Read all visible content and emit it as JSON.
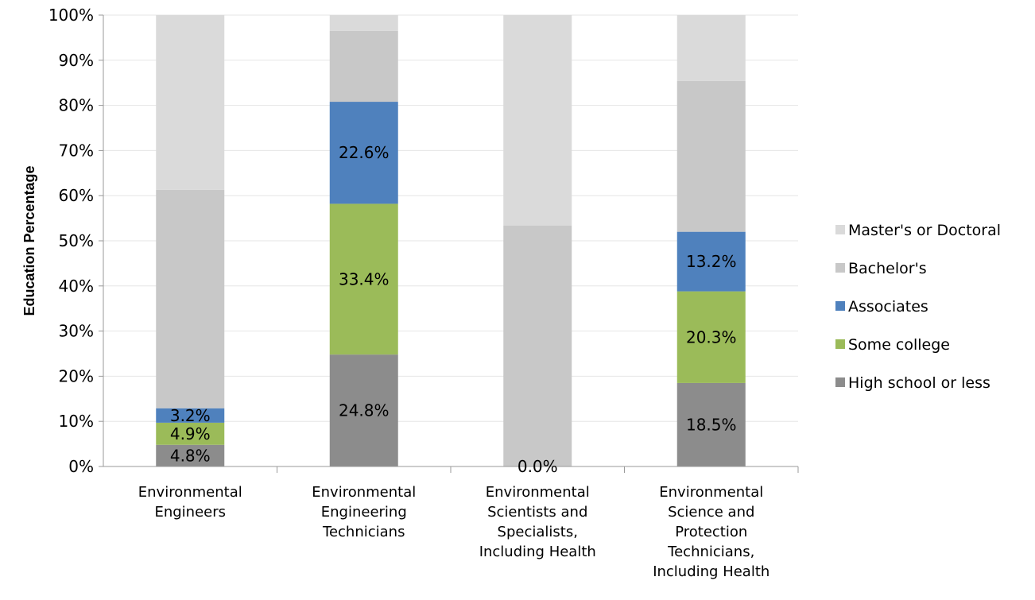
{
  "chart_data": {
    "type": "bar",
    "stacked": true,
    "ylabel": "Education Percentage",
    "ylim": [
      0,
      100
    ],
    "yticks": [
      "0%",
      "10%",
      "20%",
      "30%",
      "40%",
      "50%",
      "60%",
      "70%",
      "80%",
      "90%",
      "100%"
    ],
    "grid": true,
    "legend_position": "right",
    "categories": [
      [
        "Environmental",
        "Engineers"
      ],
      [
        "Environmental",
        "Engineering",
        "Technicians"
      ],
      [
        "Environmental",
        "Scientists and",
        "Specialists,",
        "Including Health"
      ],
      [
        "Environmental",
        "Science and",
        "Protection",
        "Technicians,",
        "Including Health"
      ]
    ],
    "series": [
      {
        "name": "High school or less",
        "color": "#8c8c8c",
        "values": [
          4.8,
          24.8,
          0.0,
          18.5
        ],
        "labels": [
          "4.8%",
          "24.8%",
          "0.0%",
          "18.5%"
        ]
      },
      {
        "name": "Some college",
        "color": "#9bbb59",
        "values": [
          4.9,
          33.4,
          0.0,
          20.3
        ],
        "labels": [
          "4.9%",
          "33.4%",
          "",
          "20.3%"
        ]
      },
      {
        "name": "Associates",
        "color": "#4f81bd",
        "values": [
          3.2,
          22.6,
          0.0,
          13.2
        ],
        "labels": [
          "3.2%",
          "22.6%",
          "",
          "13.2%"
        ]
      },
      {
        "name": "Bachelor's",
        "color": "#c8c8c8",
        "values": [
          48.4,
          15.7,
          53.4,
          33.4
        ],
        "labels": [
          "",
          "",
          "",
          ""
        ]
      },
      {
        "name": "Master's or Doctoral",
        "color": "#dadada",
        "values": [
          38.7,
          3.5,
          46.6,
          14.6
        ],
        "labels": [
          "",
          "",
          "",
          ""
        ]
      }
    ],
    "legend_order": [
      "Master's or Doctoral",
      "Bachelor's",
      "Associates",
      "Some college",
      "High school or less"
    ]
  }
}
